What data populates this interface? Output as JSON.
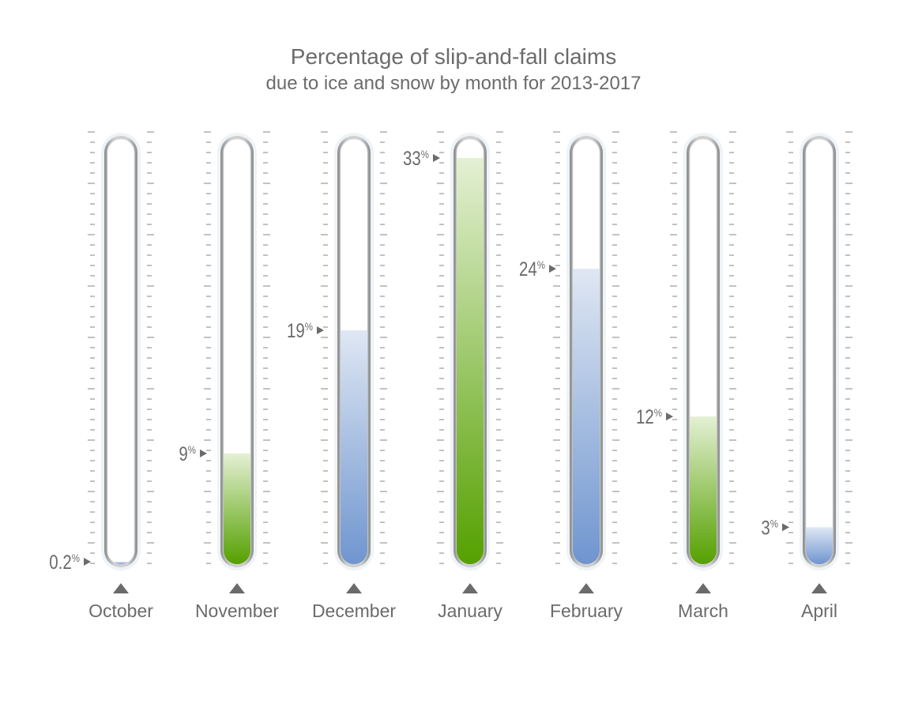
{
  "chart_data": {
    "type": "bar",
    "style": "thermometer-columns",
    "title": "Percentage of slip-and-fall claims",
    "subtitle": "due to ice and snow by month for 2013-2017",
    "categories": [
      "October",
      "November",
      "December",
      "January",
      "February",
      "March",
      "April"
    ],
    "values": [
      0.2,
      9,
      19,
      33,
      24,
      12,
      3
    ],
    "value_labels": [
      "0.2",
      "9",
      "19",
      "33",
      "24",
      "12",
      "3"
    ],
    "unit": "%",
    "ylim": [
      0,
      33
    ],
    "fill_colors": [
      "blue",
      "green",
      "blue",
      "green",
      "blue",
      "green",
      "blue"
    ],
    "colors": {
      "blue_dark": "#6f95cf",
      "blue_light": "#dfe7f3",
      "green_dark": "#55a000",
      "green_light": "#e4f0d4",
      "text": "#6b6b6b",
      "tick": "#b3b3b3"
    }
  }
}
